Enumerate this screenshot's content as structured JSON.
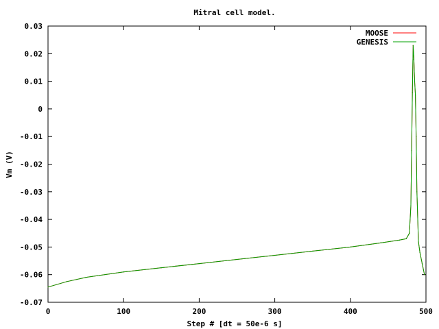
{
  "chart_data": {
    "type": "line",
    "title": "Mitral cell model.",
    "xlabel": "Step # [dt = 50e-6 s]",
    "ylabel": "Vm (V)",
    "xlim": [
      0,
      500
    ],
    "ylim": [
      -0.07,
      0.03
    ],
    "xticks": [
      0,
      100,
      200,
      300,
      400,
      500
    ],
    "xtick_labels": [
      "0",
      "100",
      "200",
      "300",
      "400",
      "500"
    ],
    "yticks": [
      -0.07,
      -0.06,
      -0.05,
      -0.04,
      -0.03,
      -0.02,
      -0.01,
      0,
      0.01,
      0.02,
      0.03
    ],
    "ytick_labels": [
      "-0.07",
      "-0.06",
      "-0.05",
      "-0.04",
      "-0.03",
      "-0.02",
      "-0.01",
      "0",
      "0.01",
      "0.02",
      "0.03"
    ],
    "grid": false,
    "legend_position": "top-right",
    "series": [
      {
        "name": "MOOSE",
        "color": "#ff0000",
        "x": [
          0,
          25,
          50,
          100,
          150,
          200,
          250,
          300,
          350,
          400,
          440,
          465,
          474,
          478,
          480,
          481,
          482,
          483,
          484,
          485,
          486,
          487,
          488,
          490,
          492,
          495,
          498
        ],
        "y": [
          -0.0645,
          -0.0625,
          -0.061,
          -0.059,
          -0.0575,
          -0.056,
          -0.0545,
          -0.053,
          -0.0515,
          -0.05,
          -0.0485,
          -0.0475,
          -0.047,
          -0.045,
          -0.035,
          -0.015,
          0.006,
          0.023,
          0.018,
          0.01,
          0.005,
          -0.01,
          -0.03,
          -0.048,
          -0.052,
          -0.056,
          -0.06
        ]
      },
      {
        "name": "GENESIS",
        "color": "#00a000",
        "x": [
          0,
          25,
          50,
          100,
          150,
          200,
          250,
          300,
          350,
          400,
          440,
          465,
          474,
          478,
          480,
          481,
          482,
          483,
          484,
          485,
          486,
          487,
          488,
          490,
          492,
          495,
          498
        ],
        "y": [
          -0.0645,
          -0.0625,
          -0.061,
          -0.059,
          -0.0575,
          -0.056,
          -0.0545,
          -0.053,
          -0.0515,
          -0.05,
          -0.0485,
          -0.0475,
          -0.047,
          -0.045,
          -0.035,
          -0.015,
          0.006,
          0.023,
          0.018,
          0.01,
          0.005,
          -0.01,
          -0.03,
          -0.048,
          -0.052,
          -0.056,
          -0.06
        ]
      }
    ]
  }
}
